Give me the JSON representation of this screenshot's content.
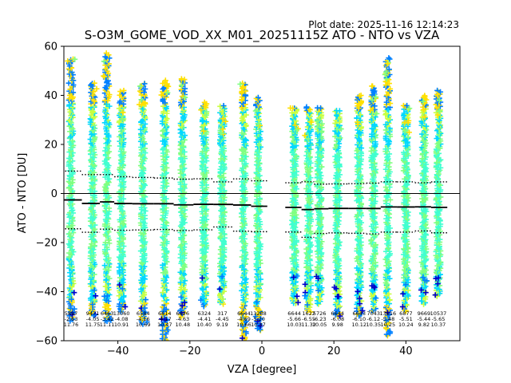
{
  "plot_date": "Plot date: 2025-11-16 12:14:23",
  "chart_data": {
    "type": "scatter",
    "title": "S-O3M_GOME_VOD_XX_M01_20251115Z ATO - NTO vs VZA",
    "xlabel": "VZA [degree]",
    "ylabel": "ATO - NTO [DU]",
    "xlim": [
      -55,
      55
    ],
    "ylim": [
      -60,
      60
    ],
    "xticks": [
      -40,
      -20,
      0,
      20,
      40
    ],
    "yticks": [
      -60,
      -40,
      -20,
      0,
      20,
      40,
      60
    ],
    "xtick_labels": [
      "−40",
      "−20",
      "0",
      "20",
      "40"
    ],
    "ytick_labels": [
      "−60",
      "−40",
      "−20",
      "0",
      "20",
      "40",
      "60"
    ],
    "colors": {
      "zero_line": "#000000",
      "mean_line": "#000000",
      "marker_palette": [
        "#0000cc",
        "#0080ff",
        "#00d8ff",
        "#40ffd0",
        "#80ff80",
        "#c8ff40",
        "#ffe000"
      ]
    },
    "bins": [
      {
        "vza": -53,
        "count": "5897",
        "mean": "-2.63",
        "sd": "11.76",
        "ymin": -52,
        "ymax": 55
      },
      {
        "vza": -47,
        "count": "9471",
        "mean": "-4.05",
        "sd": "11.75",
        "ymin": -50,
        "ymax": 45
      },
      {
        "vza": -43,
        "count": "6463",
        "mean": "-3.42",
        "sd": "11.11",
        "ymin": -52,
        "ymax": 57
      },
      {
        "vza": -39,
        "count": "13060",
        "mean": "-4.08",
        "sd": "10.91",
        "ymin": -48,
        "ymax": 42
      },
      {
        "vza": -33,
        "count": "6584",
        "mean": "-4.16",
        "sd": "10.69",
        "ymin": -53,
        "ymax": 45
      },
      {
        "vza": -27,
        "count": "6614",
        "mean": "-4.17",
        "sd": "10.47",
        "ymin": -60,
        "ymax": 46
      },
      {
        "vza": -22,
        "count": "6626",
        "mean": "-4.63",
        "sd": "10.48",
        "ymin": -50,
        "ymax": 47
      },
      {
        "vza": -16,
        "count": "6324",
        "mean": "-4.41",
        "sd": "10.40",
        "ymin": -46,
        "ymax": 37
      },
      {
        "vza": -11,
        "count": "317",
        "mean": "-4.45",
        "sd": "9.19",
        "ymin": -45,
        "ymax": 36
      },
      {
        "vza": -5,
        "count": "6644",
        "mean": "-4.69",
        "sd": "10.66",
        "ymin": -60,
        "ymax": 45
      },
      {
        "vza": -1,
        "count": "13288",
        "mean": "-5.20",
        "sd": "10.37",
        "ymin": -56,
        "ymax": 39
      },
      {
        "vza": 9,
        "count": "6644",
        "mean": "-5.66",
        "sd": "10.03",
        "ymin": -45,
        "ymax": 35
      },
      {
        "vza": 13,
        "count": "1622",
        "mean": "-6.55",
        "sd": "11.32",
        "ymin": -48,
        "ymax": 35
      },
      {
        "vza": 16,
        "count": "5726",
        "mean": "-6.23",
        "sd": "10.05",
        "ymin": -45,
        "ymax": 35
      },
      {
        "vza": 21,
        "count": "6644",
        "mean": "-6.08",
        "sd": "9.98",
        "ymin": -50,
        "ymax": 34
      },
      {
        "vza": 27,
        "count": "6643",
        "mean": "-6.10",
        "sd": "10.12",
        "ymin": -50,
        "ymax": 40
      },
      {
        "vza": 31,
        "count": "7043",
        "mean": "-6.12",
        "sd": "10.35",
        "ymin": -48,
        "ymax": 44
      },
      {
        "vza": 35,
        "count": "13616",
        "mean": "-5.48",
        "sd": "10.25",
        "ymin": -58,
        "ymax": 55
      },
      {
        "vza": 40,
        "count": "6877",
        "mean": "-5.51",
        "sd": "10.24",
        "ymin": -48,
        "ymax": 36
      },
      {
        "vza": 45,
        "count": "9669",
        "mean": "-5.44",
        "sd": "9.82",
        "ymin": -45,
        "ymax": 40
      },
      {
        "vza": 49,
        "count": "10537",
        "mean": "-5.65",
        "sd": "10.37",
        "ymin": -42,
        "ymax": 42
      }
    ]
  }
}
